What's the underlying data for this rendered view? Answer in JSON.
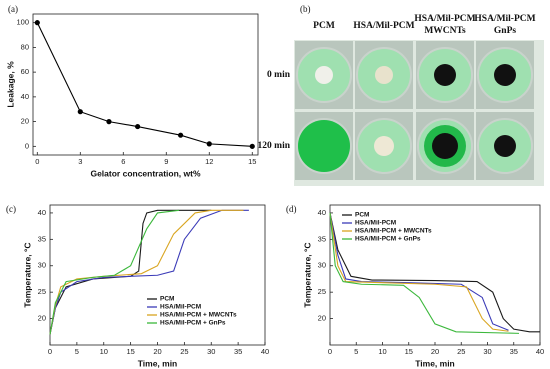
{
  "chart_data": [
    {
      "type": "line",
      "panel_label": "(a)",
      "x_label": "Gelator concentration, wt%",
      "y_label": "Leakage, %",
      "x": [
        0,
        3,
        5,
        7,
        10,
        12,
        15
      ],
      "values": [
        100,
        28,
        20,
        16,
        9,
        2,
        0
      ],
      "color": "#000000",
      "markers": true,
      "xlim": [
        -0.3,
        15.4
      ],
      "ylim": [
        -7,
        107
      ],
      "xticks": [
        0,
        3,
        6,
        9,
        12,
        15
      ],
      "yticks": [
        0,
        20,
        40,
        60,
        80,
        100
      ]
    },
    {
      "type": "line",
      "panel_label": "(c)",
      "x_label": "Time, min",
      "y_label": "Temperature, °C",
      "legend": "lower right",
      "xlim": [
        0,
        40
      ],
      "ylim": [
        15,
        41.5
      ],
      "xticks": [
        0,
        5,
        10,
        15,
        20,
        25,
        30,
        35,
        40
      ],
      "yticks": [
        20,
        25,
        30,
        35,
        40
      ],
      "series": [
        {
          "name": "PCM",
          "color": "#1a1a1a",
          "x": [
            0,
            1,
            3,
            8,
            15,
            16.5,
            17.3,
            18,
            20,
            25,
            30
          ],
          "values": [
            17,
            22,
            26,
            27.5,
            28,
            29,
            38,
            40,
            40.5,
            40.5,
            40.5
          ]
        },
        {
          "name": "HSA/Mil-PCM",
          "color": "#3b3bb8",
          "x": [
            0,
            1,
            2,
            5,
            10,
            20,
            23,
            25,
            28,
            32,
            37
          ],
          "values": [
            17,
            22,
            25,
            27,
            27.8,
            28.2,
            29,
            35,
            39,
            40.5,
            40.5
          ]
        },
        {
          "name": "HSA/Mil-PCM + MWCNTs",
          "color": "#d9a520",
          "x": [
            0,
            1,
            2,
            5,
            10,
            17,
            20,
            23,
            27,
            30,
            36
          ],
          "values": [
            17,
            22.5,
            26,
            27.5,
            28,
            28.5,
            30,
            36,
            40,
            40.5,
            40.5
          ]
        },
        {
          "name": "HSA/Mil-PCM + GnPs",
          "color": "#3cb83c",
          "x": [
            0,
            1,
            3,
            8,
            12,
            15,
            18,
            20,
            24
          ],
          "values": [
            17,
            23,
            27,
            27.8,
            28.2,
            30,
            37,
            40,
            40.5
          ]
        }
      ]
    },
    {
      "type": "line",
      "panel_label": "(d)",
      "x_label": "Time, min",
      "y_label": "Temperature, °C",
      "legend": "upper left",
      "xlim": [
        0,
        40
      ],
      "ylim": [
        15,
        41.5
      ],
      "xticks": [
        0,
        5,
        10,
        15,
        20,
        25,
        30,
        35,
        40
      ],
      "yticks": [
        20,
        25,
        30,
        35,
        40
      ],
      "series": [
        {
          "name": "PCM",
          "color": "#1a1a1a",
          "x": [
            0,
            1.5,
            4,
            8,
            20,
            28,
            31,
            33,
            35,
            38,
            40
          ],
          "values": [
            40,
            33,
            28,
            27.3,
            27.2,
            27,
            25,
            20,
            18,
            17.5,
            17.5
          ]
        },
        {
          "name": "HSA/Mil-PCM",
          "color": "#3b3bb8",
          "x": [
            0,
            1.5,
            3,
            6,
            15,
            25,
            29,
            31,
            34
          ],
          "values": [
            40,
            32,
            27.5,
            27,
            26.8,
            26.5,
            24,
            19,
            17.8
          ]
        },
        {
          "name": "HSA/Mil-PCM + MWCNTs",
          "color": "#d9a520",
          "x": [
            0,
            1.5,
            3,
            10,
            20,
            26,
            29,
            31,
            34
          ],
          "values": [
            40,
            30,
            27,
            26.8,
            26.5,
            26,
            20,
            18,
            17.6
          ]
        },
        {
          "name": "HSA/Mil-PCM + GnPs",
          "color": "#3cb83c",
          "x": [
            0,
            1,
            2.5,
            6,
            14,
            17,
            20,
            24,
            36
          ],
          "values": [
            40,
            30,
            27,
            26.5,
            26.3,
            24,
            19,
            17.5,
            17.2
          ]
        }
      ]
    }
  ],
  "photo_panel": {
    "label": "(b)",
    "columns": [
      [
        "PCM"
      ],
      [
        "HSA/Mil-PCM"
      ],
      [
        "HSA/Mil-PCM",
        "MWCNTs"
      ],
      [
        "HSA/Mil-PCM",
        "GnPs"
      ]
    ],
    "rows": [
      "0 min",
      "120 min"
    ]
  }
}
